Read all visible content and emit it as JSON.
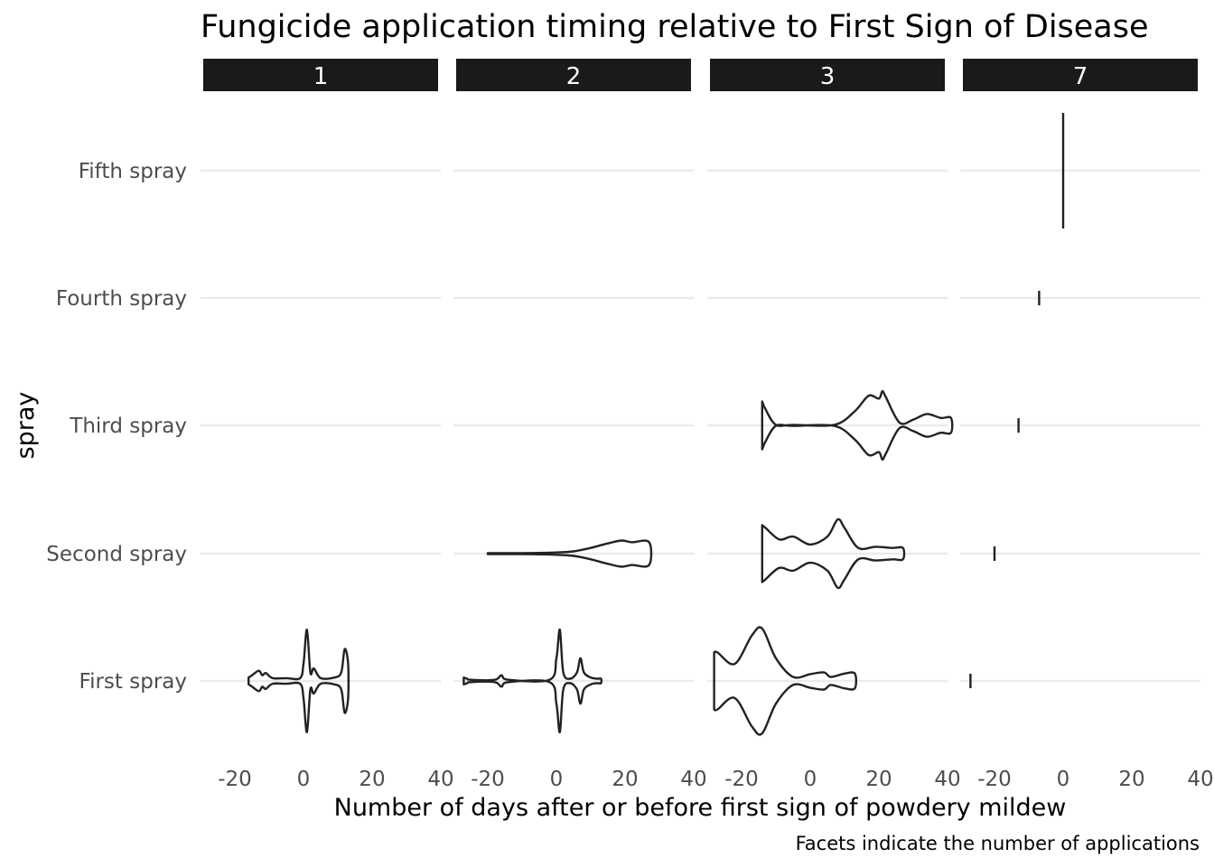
{
  "chart_data": {
    "type": "violin",
    "title": "Fungicide application timing relative to First Sign of Disease",
    "xlabel": "Number of days after or before first sign of powdery mildew",
    "ylabel": "spray",
    "caption": "Facets indicate the number of applications",
    "xlim": [
      -30,
      40
    ],
    "x_ticks": [
      -20,
      0,
      20,
      40
    ],
    "x_tick_labels": [
      "-20",
      "0",
      "20",
      "40"
    ],
    "categories": [
      "First spray",
      "Second spray",
      "Third spray",
      "Fourth spray",
      "Fifth spray"
    ],
    "legend": "none",
    "grid": "horizontal major only",
    "facets": [
      {
        "label": "1",
        "violins": [
          {
            "category": "First spray",
            "profile": [
              [
                -16,
                0.06
              ],
              [
                -15,
                0.1
              ],
              [
                -13,
                0.18
              ],
              [
                -12,
                0.1
              ],
              [
                -11,
                0.14
              ],
              [
                -9,
                0.05
              ],
              [
                -5,
                0.05
              ],
              [
                -1,
                0.05
              ],
              [
                0,
                0.3
              ],
              [
                1,
                0.9
              ],
              [
                2,
                0.15
              ],
              [
                3,
                0.22
              ],
              [
                5,
                0.05
              ],
              [
                9,
                0.06
              ],
              [
                11,
                0.15
              ],
              [
                12,
                0.56
              ],
              [
                13,
                0.3
              ]
            ]
          }
        ]
      },
      {
        "label": "2",
        "violins": [
          {
            "category": "First spray",
            "profile": [
              [
                -27,
                0.06
              ],
              [
                -26,
                0.04
              ],
              [
                -25,
                0.02
              ],
              [
                -18,
                0.02
              ],
              [
                -16,
                0.1
              ],
              [
                -14,
                0.02
              ],
              [
                -2,
                0.02
              ],
              [
                0,
                0.4
              ],
              [
                1,
                0.9
              ],
              [
                2,
                0.15
              ],
              [
                4,
                0.04
              ],
              [
                6,
                0.15
              ],
              [
                7,
                0.4
              ],
              [
                8,
                0.15
              ],
              [
                10,
                0.06
              ],
              [
                12,
                0.04
              ],
              [
                13,
                0.04
              ]
            ]
          },
          {
            "category": "Second spray",
            "profile": [
              [
                -20,
                0.01
              ],
              [
                -10,
                0.01
              ],
              [
                0,
                0.02
              ],
              [
                5,
                0.04
              ],
              [
                10,
                0.1
              ],
              [
                15,
                0.18
              ],
              [
                19,
                0.23
              ],
              [
                22,
                0.2
              ],
              [
                27,
                0.2
              ]
            ]
          }
        ]
      },
      {
        "label": "3",
        "violins": [
          {
            "category": "First spray",
            "profile": [
              [
                -28,
                0.5
              ],
              [
                -27,
                0.5
              ],
              [
                -22,
                0.3
              ],
              [
                -17,
                0.8
              ],
              [
                -14,
                0.92
              ],
              [
                -10,
                0.4
              ],
              [
                -5,
                0.07
              ],
              [
                0,
                0.12
              ],
              [
                4,
                0.15
              ],
              [
                6,
                0.07
              ],
              [
                10,
                0.13
              ],
              [
                13,
                0.13
              ]
            ]
          },
          {
            "category": "Second spray",
            "profile": [
              [
                -14,
                0.5
              ],
              [
                -13,
                0.45
              ],
              [
                -9,
                0.25
              ],
              [
                -5,
                0.3
              ],
              [
                0,
                0.16
              ],
              [
                5,
                0.3
              ],
              [
                8,
                0.6
              ],
              [
                10,
                0.45
              ],
              [
                14,
                0.1
              ],
              [
                19,
                0.12
              ],
              [
                24,
                0.1
              ],
              [
                27,
                0.1
              ]
            ]
          },
          {
            "category": "Third spray",
            "profile": [
              [
                -14,
                0.42
              ],
              [
                -13,
                0.28
              ],
              [
                -10,
                0.01
              ],
              [
                -5,
                0.01
              ],
              [
                7,
                0.01
              ],
              [
                13,
                0.25
              ],
              [
                17,
                0.52
              ],
              [
                20,
                0.47
              ],
              [
                21,
                0.6
              ],
              [
                22,
                0.5
              ],
              [
                26,
                0.05
              ],
              [
                30,
                0.1
              ],
              [
                34,
                0.2
              ],
              [
                38,
                0.13
              ],
              [
                41,
                0.13
              ]
            ]
          }
        ]
      },
      {
        "label": "7",
        "violins": [
          {
            "category": "First spray",
            "point": -27
          },
          {
            "category": "Second spray",
            "point": -20
          },
          {
            "category": "Third spray",
            "point": -13
          },
          {
            "category": "Fourth spray",
            "point": -7
          },
          {
            "category": "Fifth spray",
            "point": 0
          }
        ]
      }
    ]
  }
}
